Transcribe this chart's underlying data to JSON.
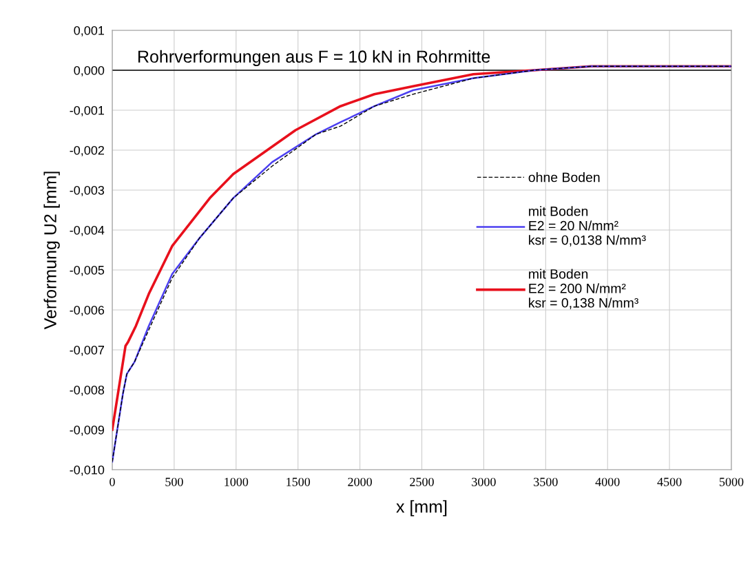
{
  "chart_data": {
    "type": "line",
    "title": "Rohrverformungen aus F = 10 kN in Rohrmitte",
    "xlabel": "x [mm]",
    "ylabel": "Verformung U2 [mm]",
    "series": [
      {
        "name": "ohne Boden",
        "color": "#000000",
        "line_style": "dashed",
        "x": [
          0,
          86,
          118,
          180,
          295,
          484,
          705,
          977,
          1291,
          1647,
          1843,
          2117,
          2429,
          2916,
          3403,
          3868,
          4376,
          5000
        ],
        "values": [
          -0.0098,
          -0.0081,
          -0.0076,
          -0.0073,
          -0.0065,
          -0.0052,
          -0.0042,
          -0.0032,
          -0.0024,
          -0.0016,
          -0.0014,
          -0.0009,
          -0.0006,
          -0.0002,
          0.0,
          0.0001,
          0.0001,
          0.0001
        ]
      },
      {
        "name": "mit Boden\nE2 = 20 N/mm²\nksr = 0,0138 N/mm³",
        "color": "#4b3ff0",
        "x": [
          0,
          86,
          118,
          180,
          295,
          484,
          705,
          977,
          1291,
          1647,
          1843,
          2117,
          2429,
          2916,
          3403,
          3868,
          4376,
          5000
        ],
        "values": [
          -0.0098,
          -0.0081,
          -0.0076,
          -0.0073,
          -0.0064,
          -0.0051,
          -0.0042,
          -0.0032,
          -0.0023,
          -0.0016,
          -0.0013,
          -0.0009,
          -0.0005,
          -0.0002,
          0.0,
          0.0001,
          0.0001,
          0.0001
        ]
      },
      {
        "name": "mit Boden\nE2 = 200 N/mm²\nksr = 0,138 N/mm³",
        "color": "#e8101c",
        "x": [
          0,
          107,
          128,
          191,
          295,
          484,
          788,
          977,
          1480,
          1843,
          2117,
          2429,
          2916,
          3403,
          3868,
          5000
        ],
        "values": [
          -0.009,
          -0.0069,
          -0.0068,
          -0.0064,
          -0.0056,
          -0.0044,
          -0.0032,
          -0.0026,
          -0.0015,
          -0.0009,
          -0.0006,
          -0.0004,
          -0.0001,
          0.0,
          0.0001,
          0.0001
        ]
      }
    ],
    "xlim": [
      0,
      5000
    ],
    "xticks": [
      0,
      500,
      1000,
      1500,
      2000,
      2500,
      3000,
      3500,
      4000,
      4500,
      5000
    ],
    "ylim": [
      -0.01,
      0.001
    ],
    "yticks": [
      {
        "value": -0.01,
        "label": "-0,010"
      },
      {
        "value": -0.009,
        "label": "-0,009"
      },
      {
        "value": -0.008,
        "label": "-0,008"
      },
      {
        "value": -0.007,
        "label": "-0,007"
      },
      {
        "value": -0.006,
        "label": "-0,006"
      },
      {
        "value": -0.005,
        "label": "-0,005"
      },
      {
        "value": -0.004,
        "label": "-0,004"
      },
      {
        "value": -0.003,
        "label": "-0,003"
      },
      {
        "value": -0.002,
        "label": "-0,002"
      },
      {
        "value": -0.001,
        "label": "-0,001"
      },
      {
        "value": 0.0,
        "label": "0,000"
      },
      {
        "value": 0.001,
        "label": "0,001"
      }
    ],
    "ref_lines": [
      {
        "axis": "y",
        "value": 0.0,
        "color": "#000000"
      }
    ],
    "grid": true,
    "legend": "right",
    "marker": "none",
    "line_style": "solid"
  }
}
